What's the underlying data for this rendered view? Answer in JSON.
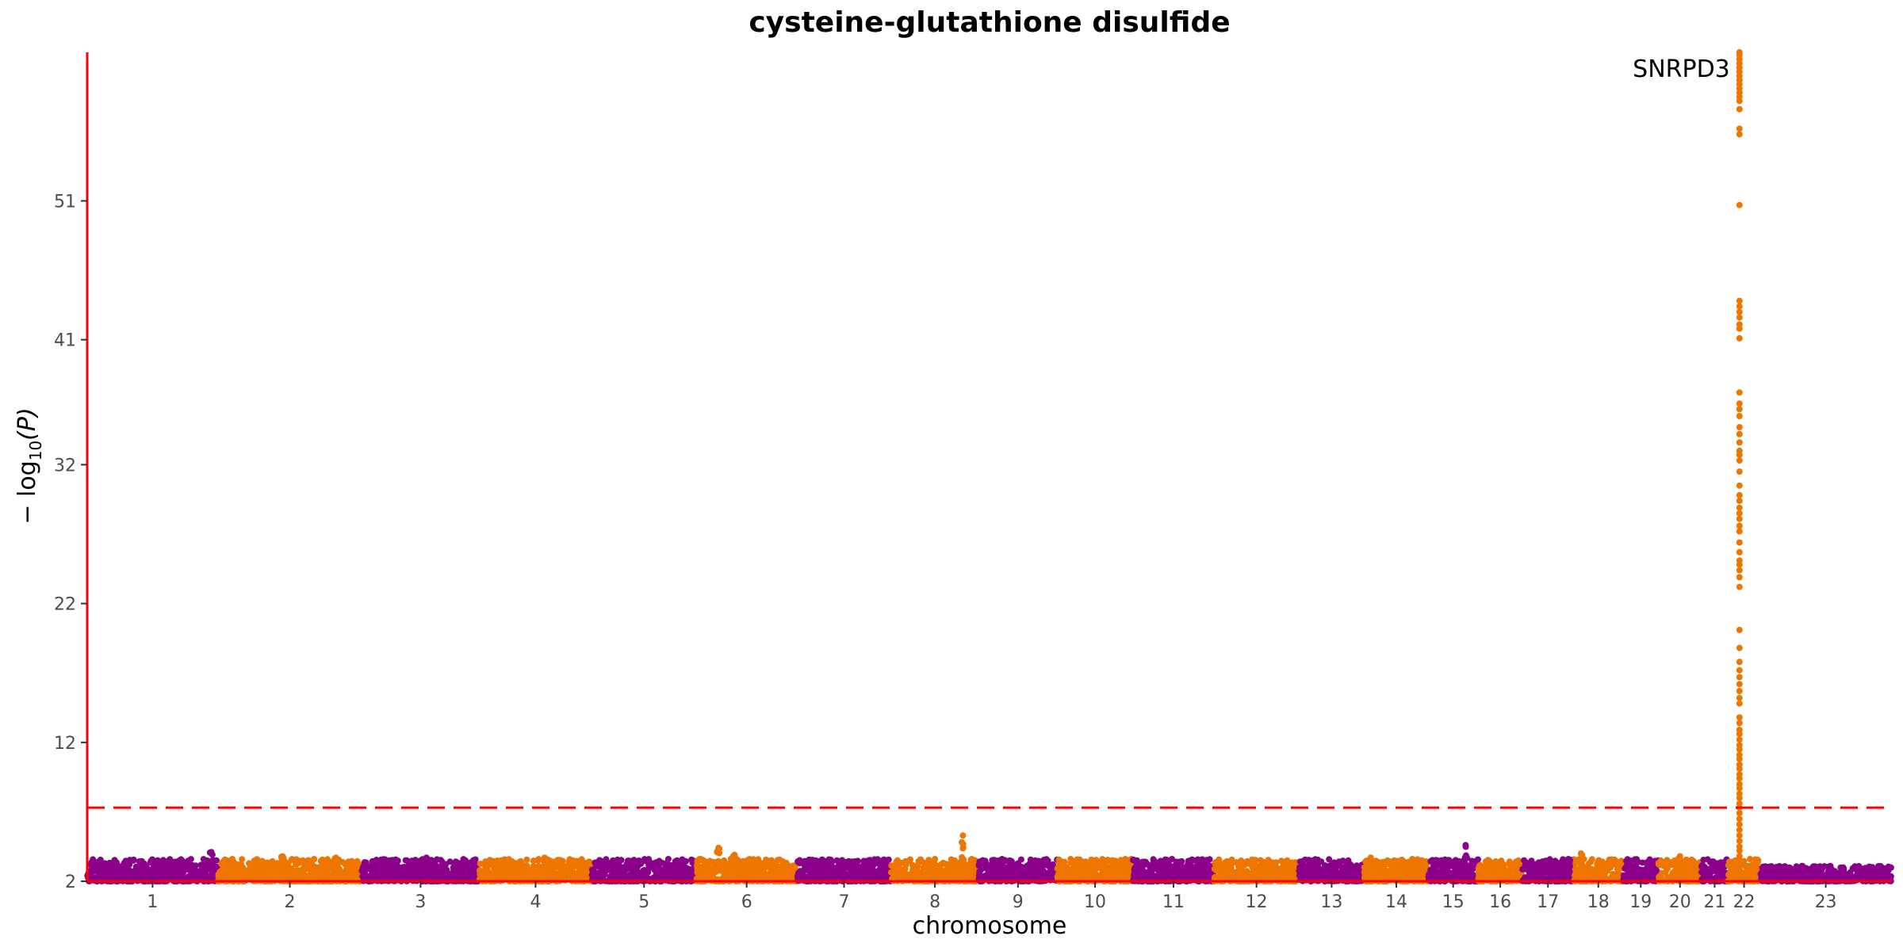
{
  "chart_data": {
    "type": "scatter",
    "title": "cysteine-glutathione disulfide",
    "xlabel": "chromosome",
    "ylabel_main": "− log",
    "ylabel_sub": "10",
    "ylabel_arg": "(P)",
    "ylim": [
      2,
      61.7
    ],
    "y_ticks": [
      2,
      12,
      22,
      32,
      41,
      51
    ],
    "y_tick_labels": [
      "2",
      "12",
      "22",
      "32",
      "41",
      "51"
    ],
    "significance_line": 7.3,
    "colors": {
      "odd": "#8b008b",
      "even": "#ee7600",
      "axis": "#ff0000",
      "threshold": "#ff0000"
    },
    "chromosomes": [
      {
        "label": "1",
        "start": 0,
        "end": 1.0
      },
      {
        "label": "2",
        "start": 1.0,
        "end": 2.1
      },
      {
        "label": "3",
        "start": 2.1,
        "end": 3.0
      },
      {
        "label": "4",
        "start": 3.0,
        "end": 3.86
      },
      {
        "label": "5",
        "start": 3.86,
        "end": 4.66
      },
      {
        "label": "6",
        "start": 4.66,
        "end": 5.43
      },
      {
        "label": "7",
        "start": 5.43,
        "end": 6.15
      },
      {
        "label": "8",
        "start": 6.15,
        "end": 6.82
      },
      {
        "label": "9",
        "start": 6.82,
        "end": 7.42
      },
      {
        "label": "10",
        "start": 7.42,
        "end": 8.0
      },
      {
        "label": "11",
        "start": 8.0,
        "end": 8.62
      },
      {
        "label": "12",
        "start": 8.62,
        "end": 9.27
      },
      {
        "label": "13",
        "start": 9.27,
        "end": 9.77
      },
      {
        "label": "14",
        "start": 9.77,
        "end": 10.26
      },
      {
        "label": "15",
        "start": 10.26,
        "end": 10.64
      },
      {
        "label": "16",
        "start": 10.64,
        "end": 10.98
      },
      {
        "label": "17",
        "start": 10.98,
        "end": 11.37
      },
      {
        "label": "18",
        "start": 11.37,
        "end": 11.75
      },
      {
        "label": "19",
        "start": 11.75,
        "end": 12.02
      },
      {
        "label": "20",
        "start": 12.02,
        "end": 12.35
      },
      {
        "label": "21",
        "start": 12.35,
        "end": 12.55
      },
      {
        "label": "22",
        "start": 12.55,
        "end": 12.8
      },
      {
        "label": "23",
        "start": 12.8,
        "end": 13.8
      }
    ],
    "peaks": [
      {
        "chrom": 1,
        "pos": 0.95,
        "p": 4.1
      },
      {
        "chrom": 2,
        "pos": 0.1,
        "p": 3.6
      },
      {
        "chrom": 2,
        "pos": 0.45,
        "p": 3.8
      },
      {
        "chrom": 2,
        "pos": 0.82,
        "p": 3.7
      },
      {
        "chrom": 3,
        "pos": 0.55,
        "p": 3.7
      },
      {
        "chrom": 4,
        "pos": 0.58,
        "p": 3.7
      },
      {
        "chrom": 6,
        "pos": 0.22,
        "p": 4.4
      },
      {
        "chrom": 6,
        "pos": 0.38,
        "p": 3.9
      },
      {
        "chrom": 7,
        "pos": 0.2,
        "p": 3.5
      },
      {
        "chrom": 8,
        "pos": 0.5,
        "p": 3.6
      },
      {
        "chrom": 8,
        "pos": 0.82,
        "p": 5.3
      },
      {
        "chrom": 8,
        "pos": 0.92,
        "p": 3.6
      },
      {
        "chrom": 9,
        "pos": 0.72,
        "p": 3.5
      },
      {
        "chrom": 10,
        "pos": 0.9,
        "p": 3.6
      },
      {
        "chrom": 11,
        "pos": 0.05,
        "p": 3.5
      },
      {
        "chrom": 14,
        "pos": 0.1,
        "p": 3.7
      },
      {
        "chrom": 14,
        "pos": 0.75,
        "p": 3.6
      },
      {
        "chrom": 15,
        "pos": 0.75,
        "p": 4.6
      },
      {
        "chrom": 17,
        "pos": 0.9,
        "p": 3.6
      },
      {
        "chrom": 18,
        "pos": 0.15,
        "p": 4.0
      },
      {
        "chrom": 20,
        "pos": 0.5,
        "p": 3.8
      },
      {
        "chrom": 22,
        "pos": 0.3,
        "p": 3.5
      }
    ],
    "top_hit": {
      "chrom": 22,
      "pos": 0.36,
      "values": [
        61.7,
        61.5,
        61.2,
        60.9,
        60.6,
        60.3,
        60.0,
        59.7,
        59.4,
        59.1,
        58.8,
        58.5,
        58.2,
        57.6,
        56.2,
        55.8,
        50.7,
        43.8,
        43.4,
        43.0,
        42.6,
        42.1,
        41.8,
        41.1,
        37.2,
        36.4,
        36.0,
        35.5,
        34.7,
        34.2,
        33.6,
        33.0,
        32.7,
        32.3,
        31.5,
        30.5,
        29.8,
        29.4,
        28.9,
        28.5,
        28.1,
        27.6,
        27.2,
        26.4,
        25.7,
        25.1,
        24.8,
        24.4,
        23.9,
        23.2,
        20.1,
        18.8,
        17.8,
        17.2,
        16.7,
        16.2,
        15.7,
        15.2,
        14.8,
        13.8,
        13.4,
        12.9,
        12.6,
        12.2,
        11.8,
        11.5,
        11.1,
        10.8,
        10.4,
        10.1,
        9.7,
        9.4,
        9.0,
        8.7,
        8.3,
        8.0,
        7.6,
        7.3,
        6.9,
        6.5,
        6.1,
        5.7,
        5.3,
        4.9,
        4.5,
        4.2,
        3.8,
        3.4,
        3.1,
        2.8,
        2.5,
        2.2
      ]
    },
    "annotation": {
      "label": "SNRPD3",
      "chrom": 22,
      "y": 60.5
    }
  }
}
